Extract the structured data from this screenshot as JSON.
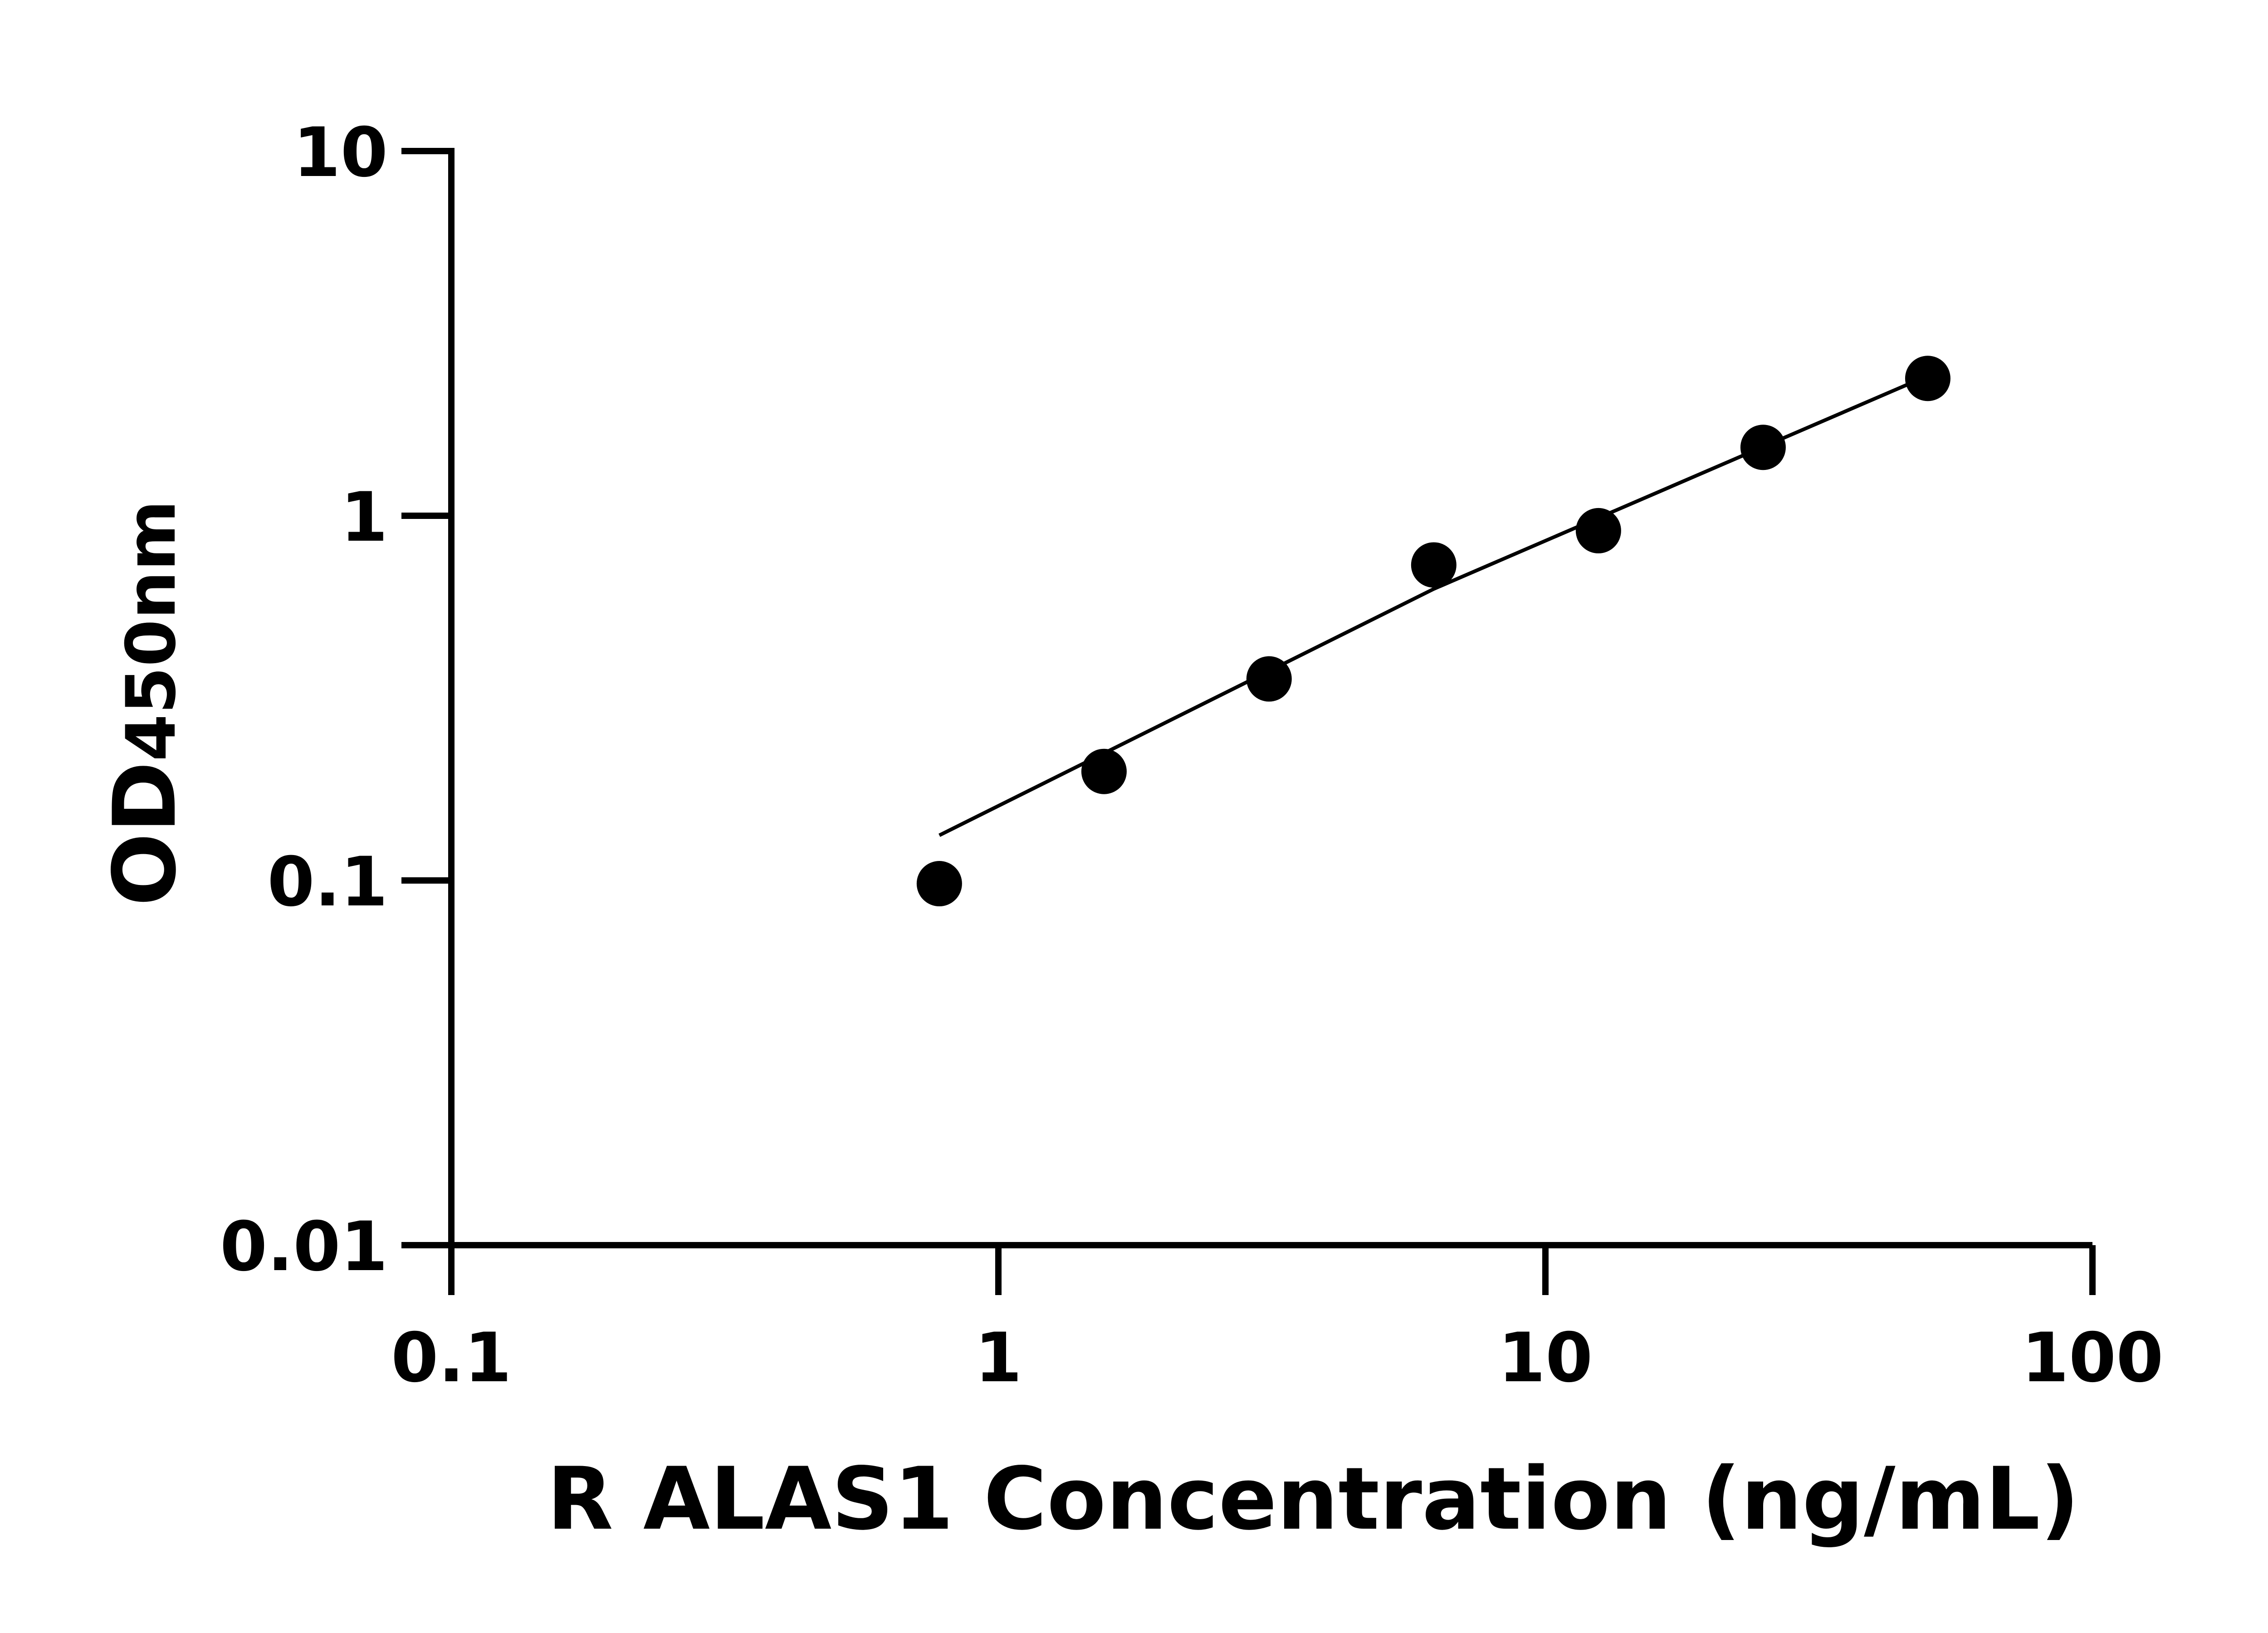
{
  "chart_data": {
    "type": "scatter",
    "title": "",
    "xlabel": "R ALAS1 Concentration (ng/mL)",
    "ylabel_main": "OD",
    "ylabel_sub": "450nm",
    "x_scale": "log",
    "y_scale": "log",
    "xlim": [
      0.1,
      100
    ],
    "ylim": [
      0.01,
      10
    ],
    "x_ticks": [
      0.1,
      1,
      10,
      100
    ],
    "x_tick_labels": [
      "0.1",
      "1",
      "10",
      "100"
    ],
    "y_ticks": [
      0.01,
      0.1,
      1,
      10
    ],
    "y_tick_labels": [
      "0.01",
      "0.1",
      "1",
      "10"
    ],
    "grid": false,
    "legend": "none",
    "color": "#000000",
    "points": {
      "x": [
        0.78,
        1.56,
        3.125,
        6.25,
        12.5,
        25,
        50
      ],
      "y": [
        0.098,
        0.199,
        0.357,
        0.733,
        0.91,
        1.54,
        2.38
      ]
    },
    "fit_line": {
      "x": [
        0.78,
        6.25,
        50
      ],
      "y": [
        0.133,
        0.63,
        2.42
      ]
    }
  }
}
